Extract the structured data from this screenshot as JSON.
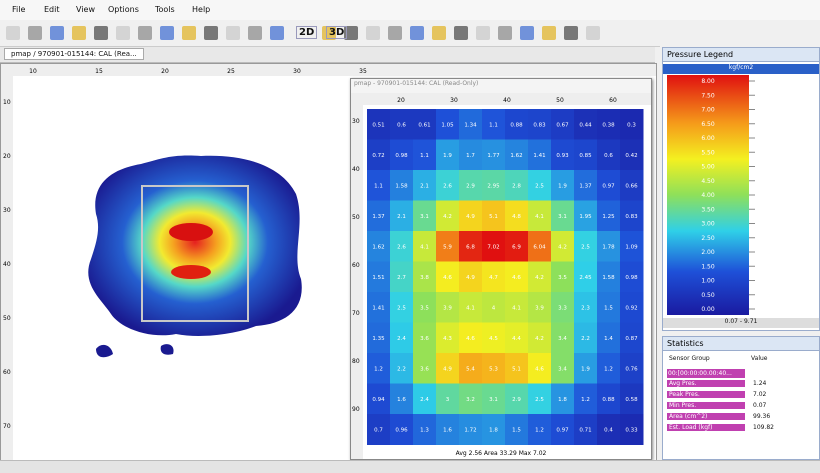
{
  "menu": [
    "File",
    "Edit",
    "View",
    "Options",
    "Tools",
    "Help"
  ],
  "toolbar": [
    "2D",
    "3D"
  ],
  "tab_title": "pmap / 970901-015144: CAL (Rea...",
  "main_ruler_top": [
    "10",
    "15",
    "20",
    "25",
    "30",
    "35"
  ],
  "main_ruler_left": [
    "10",
    "20",
    "30",
    "40",
    "50",
    "60",
    "70"
  ],
  "sub_window": {
    "title": "pmap - 970901-015144: CAL (Read-Only)",
    "ruler_top": [
      "20",
      "30",
      "40",
      "50",
      "60"
    ],
    "ruler_left": [
      "30",
      "40",
      "50",
      "60",
      "70",
      "80",
      "90"
    ],
    "grid": [
      [
        0.51,
        0.6,
        0.61,
        1.05,
        1.34,
        1.1,
        0.88,
        0.83,
        0.67,
        0.44,
        0.38,
        0.3
      ],
      [
        0.72,
        0.98,
        1.1,
        1.9,
        1.7,
        1.77,
        1.62,
        1.41,
        0.93,
        0.85,
        0.6,
        0.42
      ],
      [
        1.1,
        1.58,
        2.1,
        2.6,
        2.9,
        2.95,
        2.8,
        2.5,
        1.9,
        1.37,
        0.97,
        0.66
      ],
      [
        1.37,
        2.1,
        3.1,
        4.2,
        4.9,
        5.1,
        4.8,
        4.1,
        3.1,
        1.95,
        1.25,
        0.83
      ],
      [
        1.62,
        2.6,
        4.1,
        5.9,
        6.8,
        7.02,
        6.9,
        6.04,
        4.2,
        2.5,
        1.78,
        1.09
      ],
      [
        1.51,
        2.7,
        3.8,
        4.6,
        4.9,
        4.7,
        4.6,
        4.2,
        3.5,
        2.45,
        1.58,
        0.98
      ],
      [
        1.41,
        2.5,
        3.5,
        3.9,
        4.1,
        4.0,
        4.1,
        3.9,
        3.3,
        2.3,
        1.5,
        0.92
      ],
      [
        1.35,
        2.4,
        3.6,
        4.3,
        4.6,
        4.5,
        4.4,
        4.2,
        3.4,
        2.2,
        1.4,
        0.87
      ],
      [
        1.2,
        2.2,
        3.6,
        4.9,
        5.4,
        5.3,
        5.1,
        4.6,
        3.4,
        1.9,
        1.2,
        0.76
      ],
      [
        0.94,
        1.6,
        2.4,
        3.0,
        3.2,
        3.1,
        2.9,
        2.5,
        1.8,
        1.2,
        0.88,
        0.58
      ],
      [
        0.7,
        0.96,
        1.3,
        1.6,
        1.72,
        1.8,
        1.5,
        1.2,
        0.97,
        0.71,
        0.4,
        0.33
      ]
    ],
    "footer": "Avg 2.56 Area 33.29 Max 7.02"
  },
  "legend": {
    "title": "Pressure Legend",
    "unit": "kgf/cm2",
    "labels": [
      "8.00",
      "7.50",
      "7.00",
      "6.50",
      "6.00",
      "5.50",
      "5.00",
      "4.50",
      "4.00",
      "3.50",
      "3.00",
      "2.50",
      "2.00",
      "1.50",
      "1.00",
      "0.50",
      "0.00"
    ],
    "footer": "0.07 - 9.71"
  },
  "statistics": {
    "title": "Statistics",
    "headers": [
      "Sensor Group",
      "Value"
    ],
    "frame": "00:[00:00:00.00:40...",
    "rows": [
      {
        "label": "Avg Pres.",
        "value": 1.24
      },
      {
        "label": "Peak Pres.",
        "value": 7.02
      },
      {
        "label": "Min Pres.",
        "value": 0.07
      },
      {
        "label": "Area (cm^2)",
        "value": 99.36
      },
      {
        "label": "Est. Load (kgf)",
        "value": 109.82
      }
    ]
  }
}
